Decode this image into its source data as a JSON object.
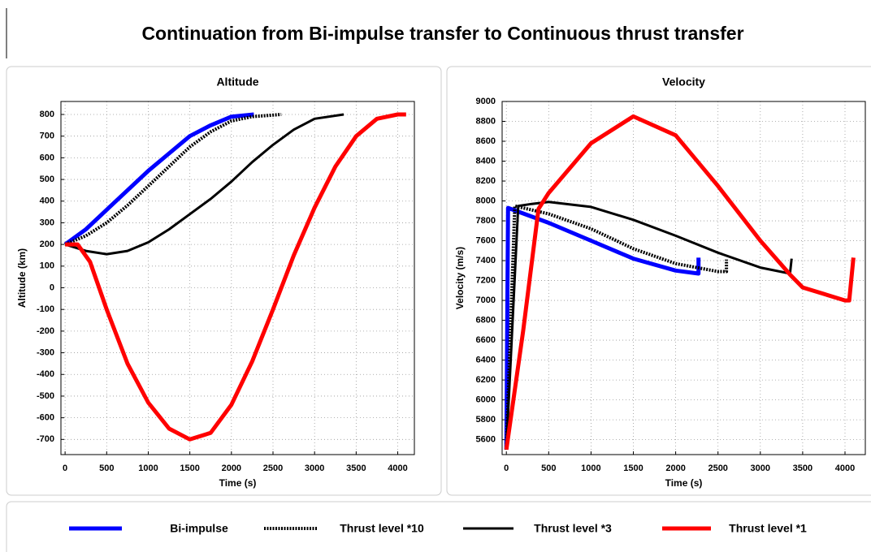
{
  "title": "Continuation from Bi-impulse transfer to Continuous thrust transfer",
  "legend": [
    {
      "name": "Bi-impulse",
      "color": "#0000ff",
      "linestyle": "solid"
    },
    {
      "name": "Thrust level *10",
      "color": "#000000",
      "linestyle": "dotted"
    },
    {
      "name": "Thrust level *3",
      "color": "#000000",
      "linestyle": "solid"
    },
    {
      "name": "Thrust level *1",
      "color": "#ff0000",
      "linestyle": "solid"
    }
  ],
  "chart_data": [
    {
      "type": "line",
      "title": "Altitude",
      "xlabel": "Time (s)",
      "ylabel": "Altitude (km)",
      "xlim": [
        -50,
        4200
      ],
      "ylim": [
        -770,
        860
      ],
      "xticks": [
        0,
        500,
        1000,
        1500,
        2000,
        2500,
        3000,
        3500,
        4000
      ],
      "yticks": [
        -700,
        -600,
        -500,
        -400,
        -300,
        -200,
        -100,
        0,
        100,
        200,
        300,
        400,
        500,
        600,
        700,
        800
      ],
      "grid": true,
      "series": [
        {
          "color": "#0000ff",
          "linestyle": "solid",
          "x": [
            0,
            250,
            500,
            750,
            1000,
            1250,
            1500,
            1750,
            2000,
            2270
          ],
          "values": [
            200,
            270,
            360,
            450,
            540,
            620,
            700,
            750,
            790,
            800
          ]
        },
        {
          "color": "#000000",
          "linestyle": "dotted",
          "x": [
            0,
            250,
            500,
            750,
            1000,
            1250,
            1500,
            1750,
            2000,
            2250,
            2600
          ],
          "values": [
            200,
            240,
            300,
            380,
            470,
            560,
            650,
            720,
            770,
            790,
            800
          ]
        },
        {
          "color": "#000000",
          "linestyle": "solid",
          "x": [
            0,
            250,
            500,
            750,
            1000,
            1250,
            1500,
            1750,
            2000,
            2250,
            2500,
            2750,
            3000,
            3350
          ],
          "values": [
            200,
            170,
            155,
            170,
            210,
            270,
            340,
            410,
            490,
            580,
            660,
            730,
            780,
            800
          ]
        },
        {
          "color": "#ff0000",
          "linestyle": "solid",
          "x": [
            0,
            150,
            300,
            500,
            750,
            1000,
            1250,
            1500,
            1750,
            2000,
            2250,
            2500,
            2750,
            3000,
            3250,
            3500,
            3750,
            4000,
            4100
          ],
          "values": [
            200,
            200,
            120,
            -100,
            -350,
            -530,
            -650,
            -700,
            -670,
            -540,
            -340,
            -100,
            150,
            370,
            560,
            700,
            780,
            800,
            800
          ]
        }
      ]
    },
    {
      "type": "line",
      "title": "Velocity",
      "xlabel": "Time (s)",
      "ylabel": "Velocity (m/s)",
      "xlim": [
        -50,
        4240
      ],
      "ylim": [
        5450,
        9000
      ],
      "xticks": [
        0,
        500,
        1000,
        1500,
        2000,
        2500,
        3000,
        3500,
        4000
      ],
      "yticks": [
        5600,
        5800,
        6000,
        6200,
        6400,
        6600,
        6800,
        7000,
        7200,
        7400,
        7600,
        7800,
        8000,
        8200,
        8400,
        8600,
        8800,
        9000
      ],
      "grid": true,
      "series": [
        {
          "color": "#0000ff",
          "linestyle": "solid",
          "x": [
            0,
            20,
            500,
            1000,
            1500,
            2000,
            2270,
            2270
          ],
          "values": [
            5500,
            7930,
            7780,
            7600,
            7420,
            7300,
            7270,
            7430
          ]
        },
        {
          "color": "#000000",
          "linestyle": "dotted",
          "x": [
            0,
            100,
            500,
            1000,
            1500,
            2000,
            2500,
            2600,
            2600
          ],
          "values": [
            5500,
            7950,
            7870,
            7720,
            7520,
            7370,
            7290,
            7290,
            7410
          ]
        },
        {
          "color": "#000000",
          "linestyle": "solid",
          "x": [
            0,
            140,
            300,
            500,
            1000,
            1500,
            2000,
            2500,
            3000,
            3350,
            3370
          ],
          "values": [
            5500,
            7950,
            7970,
            7990,
            7940,
            7810,
            7650,
            7480,
            7330,
            7270,
            7420
          ]
        },
        {
          "color": "#ff0000",
          "linestyle": "solid",
          "x": [
            0,
            200,
            380,
            500,
            1000,
            1500,
            2000,
            2500,
            3000,
            3350,
            3500,
            4000,
            4050,
            4100
          ],
          "values": [
            5500,
            6700,
            7920,
            8080,
            8580,
            8850,
            8660,
            8150,
            7600,
            7260,
            7130,
            7000,
            7000,
            7430
          ]
        }
      ]
    }
  ]
}
